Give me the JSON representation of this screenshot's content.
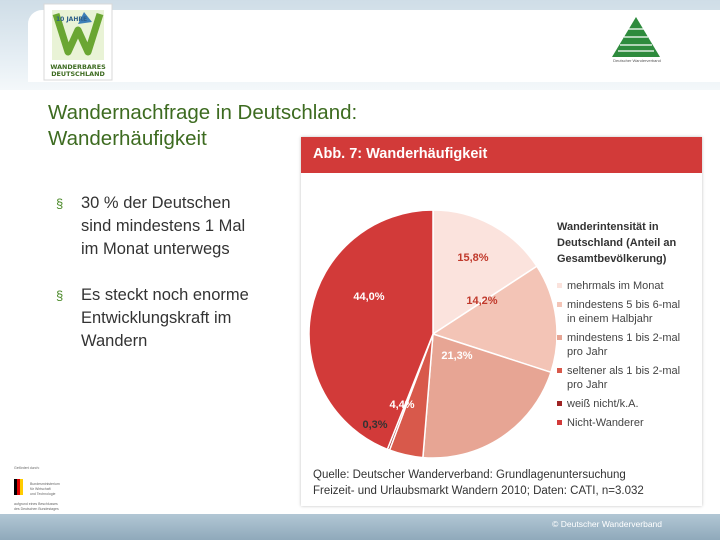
{
  "header": {
    "logo_left_text": [
      "10 JAHRE",
      "WANDERBARES",
      "DEUTSCHLAND"
    ],
    "logo_right_text": "Deutscher Wanderverband"
  },
  "slide": {
    "title_line1": "Wandernachfrage in Deutschland:",
    "title_line2": "Wanderhäufigkeit",
    "bullets": [
      {
        "mark": "§",
        "lines": [
          "30 % der Deutschen",
          "sind mindestens 1 Mal",
          "im Monat unterwegs"
        ]
      },
      {
        "mark": "§",
        "lines": [
          "Es steckt noch enorme",
          "Entwicklungskraft im",
          "Wandern"
        ]
      }
    ]
  },
  "sponsor": {
    "label": "Gefördert durch:",
    "lines": [
      "Bundesministerium",
      "für Wirtschaft",
      "und Technologie",
      "aufgrund eines Beschlusses",
      "des Deutschen Bundestages"
    ]
  },
  "footer": {
    "copyright": "© Deutscher Wanderverband"
  },
  "chart_data": {
    "type": "pie",
    "title": "Abb. 7: Wanderhäufigkeit",
    "legend_title": "Wanderintensität in Deutschland (Anteil an Gesamtbevölkerung)",
    "legend_title_lines": [
      "Wanderintensität in",
      "Deutschland (Anteil an",
      "Gesamtbevölkerung)"
    ],
    "legend_placement": "right",
    "slices": [
      {
        "name": "mehrmals im Monat",
        "name_lines": [
          "mehrmals im Monat"
        ],
        "value": 15.8,
        "label": "15,8%",
        "color": "#fbe3dd",
        "label_color": "#c0392b"
      },
      {
        "name": "mindestens 5 bis 6-mal in einem Halbjahr",
        "name_lines": [
          "mindestens 5 bis 6-mal",
          "in einem Halbjahr"
        ],
        "value": 14.2,
        "label": "14,2%",
        "color": "#f3c4b6",
        "label_color": "#c0392b"
      },
      {
        "name": "mindestens 1 bis 2-mal pro Jahr",
        "name_lines": [
          "mindestens 1 bis 2-mal",
          "pro Jahr"
        ],
        "value": 21.3,
        "label": "21,3%",
        "color": "#e7a594",
        "label_color": "#ffffff"
      },
      {
        "name": "seltener als 1 bis 2-mal pro Jahr",
        "name_lines": [
          "seltener als 1 bis 2-mal",
          "pro Jahr"
        ],
        "value": 4.4,
        "label": "4,4%",
        "color": "#d8594b",
        "label_color": "#ffffff"
      },
      {
        "name": "weiß nicht/k.A.",
        "name_lines": [
          "weiß nicht/k.A."
        ],
        "value": 0.3,
        "label": "0,3%",
        "color": "#9e2424",
        "label_color": "#333333"
      },
      {
        "name": "Nicht-Wanderer",
        "name_lines": [
          "Nicht-Wanderer"
        ],
        "value": 44.0,
        "label": "44,0%",
        "color": "#d23a39",
        "label_color": "#ffffff"
      }
    ],
    "source": "Quelle: Deutscher Wanderverband: Grundlagenuntersuchung Freizeit- und Urlaubsmarkt Wandern 2010; Daten: CATI, n=3.032",
    "source_lines": [
      "Quelle: Deutscher Wanderverband: Grundlagenuntersuchung",
      "Freizeit- und Urlaubsmarkt Wandern 2010; Daten: CATI, n=3.032"
    ]
  }
}
